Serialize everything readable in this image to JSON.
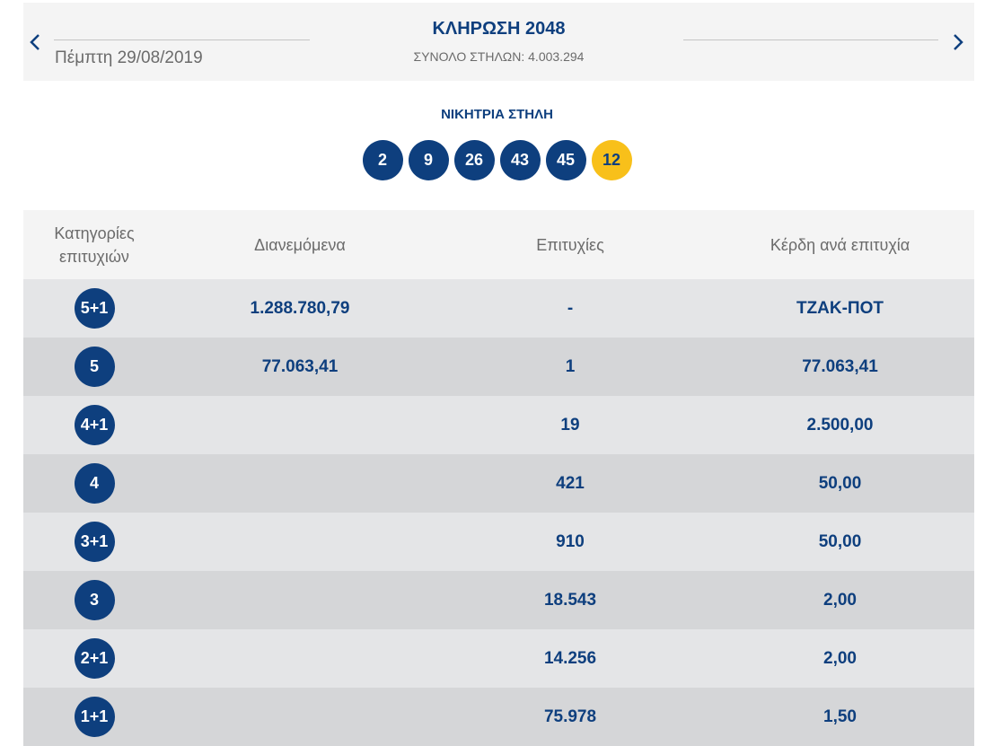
{
  "header": {
    "prev_icon": "chevron-left-icon",
    "next_icon": "chevron-right-icon",
    "date": "Πέμπτη 29/08/2019",
    "title": "ΚΛΗΡΩΣΗ 2048",
    "columns_total": "ΣΥΝΟΛΟ ΣΤΗΛΩΝ: 4.003.294"
  },
  "winning": {
    "label": "ΝΙΚΗΤΡΙΑ ΣΤΗΛΗ",
    "numbers": [
      "2",
      "9",
      "26",
      "43",
      "45"
    ],
    "joker": "12"
  },
  "table": {
    "headers": {
      "category_line1": "Κατηγορίες",
      "category_line2": "επιτυχιών",
      "distributed": "Διανεμόμενα",
      "winners": "Επιτυχίες",
      "prize": "Κέρδη ανά επιτυχία"
    },
    "rows": [
      {
        "category": "5+1",
        "distributed": "1.288.780,79",
        "winners": "-",
        "prize": "ΤΖΑΚ-ΠΟΤ"
      },
      {
        "category": "5",
        "distributed": "77.063,41",
        "winners": "1",
        "prize": "77.063,41"
      },
      {
        "category": "4+1",
        "distributed": "",
        "winners": "19",
        "prize": "2.500,00"
      },
      {
        "category": "4",
        "distributed": "",
        "winners": "421",
        "prize": "50,00"
      },
      {
        "category": "3+1",
        "distributed": "",
        "winners": "910",
        "prize": "50,00"
      },
      {
        "category": "3",
        "distributed": "",
        "winners": "18.543",
        "prize": "2,00"
      },
      {
        "category": "2+1",
        "distributed": "",
        "winners": "14.256",
        "prize": "2,00"
      },
      {
        "category": "1+1",
        "distributed": "",
        "winners": "75.978",
        "prize": "1,50"
      }
    ]
  },
  "colors": {
    "primary": "#0e3f7e",
    "joker": "#f8c01a",
    "row_light": "#e4e5e7",
    "row_dark": "#d5d6d8",
    "header_bg": "#f4f4f4"
  }
}
